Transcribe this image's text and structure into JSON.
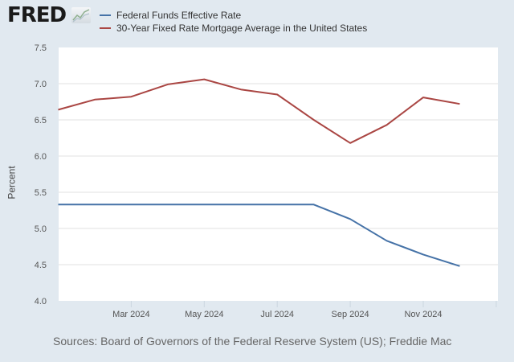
{
  "logo": {
    "text": "FRED",
    "icon": "line-chart-icon"
  },
  "source": "Sources: Board of Governors of the Federal Reserve System (US); Freddie Mac",
  "chart_data": {
    "type": "line",
    "title": "",
    "xlabel": "",
    "ylabel": "Percent",
    "ylim": [
      4.0,
      7.5
    ],
    "yticks": [
      "4.0",
      "4.5",
      "5.0",
      "5.5",
      "6.0",
      "6.5",
      "7.0",
      "7.5"
    ],
    "xticks": [
      {
        "month": 2,
        "label": "Mar 2024"
      },
      {
        "month": 4,
        "label": "May 2024"
      },
      {
        "month": 6,
        "label": "Jul 2024"
      },
      {
        "month": 8,
        "label": "Sep 2024"
      },
      {
        "month": 10,
        "label": "Nov 2024"
      },
      {
        "month": 12,
        "label": ""
      }
    ],
    "x": [
      "2024-01",
      "2024-02",
      "2024-03",
      "2024-04",
      "2024-05",
      "2024-06",
      "2024-07",
      "2024-08",
      "2024-09",
      "2024-10",
      "2024-11",
      "2024-12"
    ],
    "grid": true,
    "legend": "top",
    "series": [
      {
        "name": "Federal Funds Effective Rate",
        "color": "#4572a7",
        "values": [
          5.33,
          5.33,
          5.33,
          5.33,
          5.33,
          5.33,
          5.33,
          5.33,
          5.13,
          4.83,
          4.64,
          4.48
        ]
      },
      {
        "name": "30-Year Fixed Rate Mortgage Average in the United States",
        "color": "#aa4643",
        "values": [
          6.64,
          6.78,
          6.82,
          6.99,
          7.06,
          6.92,
          6.85,
          6.5,
          6.18,
          6.43,
          6.81,
          6.72
        ]
      }
    ]
  }
}
